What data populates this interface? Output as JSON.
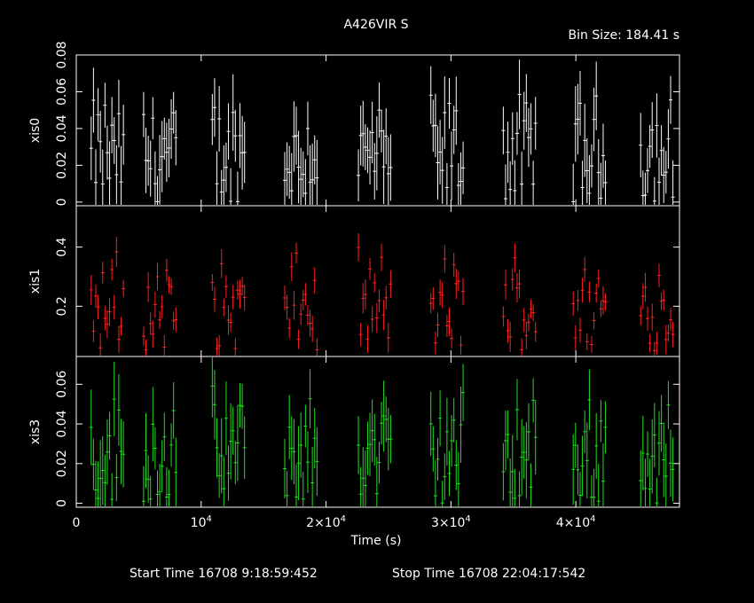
{
  "chart_data": {
    "type": "scatter",
    "title": "A426VIR  S",
    "bin_size_label": "Bin Size:  184.41  s",
    "xlabel": "Time (s)",
    "xlim": [
      0,
      48300
    ],
    "x_ticks": [
      {
        "value": 0,
        "base": "0",
        "exp": ""
      },
      {
        "value": 10000,
        "base": "10",
        "exp": "4"
      },
      {
        "value": 20000,
        "base": "2×10",
        "exp": "4"
      },
      {
        "value": 30000,
        "base": "3×10",
        "exp": "4"
      },
      {
        "value": 40000,
        "base": "4×10",
        "exp": "4"
      }
    ],
    "start_time_label": "Start Time  16708   9:18:59:452",
    "stop_time_label": "Stop Time  16708  22:04:17:542",
    "bin_size_s": 184.41,
    "panels": [
      {
        "name": "xis0",
        "color": "#ffffff",
        "ylim": [
          -0.002,
          0.08
        ],
        "yticks": [
          0,
          0.02,
          0.04,
          0.06,
          0.08
        ],
        "ytick_labels": [
          "0",
          "0.02",
          "0.04",
          "0.06",
          "0.08"
        ],
        "seg_starts": [
          1100,
          5300,
          10800,
          16600,
          22500,
          28300,
          34100,
          39700,
          45100
        ],
        "seg_len": 2800,
        "ymin": 0,
        "ymax": 0.065,
        "err": 0.016
      },
      {
        "name": "xis1",
        "color": "#ff2020",
        "ylim": [
          0.03,
          0.54
        ],
        "yticks": [
          0.2,
          0.4
        ],
        "ytick_labels": [
          "0.2",
          "0.4"
        ],
        "seg_starts": [
          1100,
          5300,
          10800,
          16600,
          22500,
          28300,
          34100,
          39700,
          45100
        ],
        "seg_len": 2800,
        "ymin": 0.05,
        "ymax": 0.42,
        "err": 0.04
      },
      {
        "name": "xis3",
        "color": "#22dd22",
        "ylim": [
          -0.002,
          0.074
        ],
        "yticks": [
          0,
          0.02,
          0.04,
          0.06
        ],
        "ytick_labels": [
          "0",
          "0.02",
          "0.04",
          "0.06"
        ],
        "seg_starts": [
          1100,
          5300,
          10800,
          16600,
          22500,
          28300,
          34100,
          39700,
          45100
        ],
        "seg_len": 2800,
        "ymin": 0,
        "ymax": 0.062,
        "err": 0.015
      }
    ]
  }
}
